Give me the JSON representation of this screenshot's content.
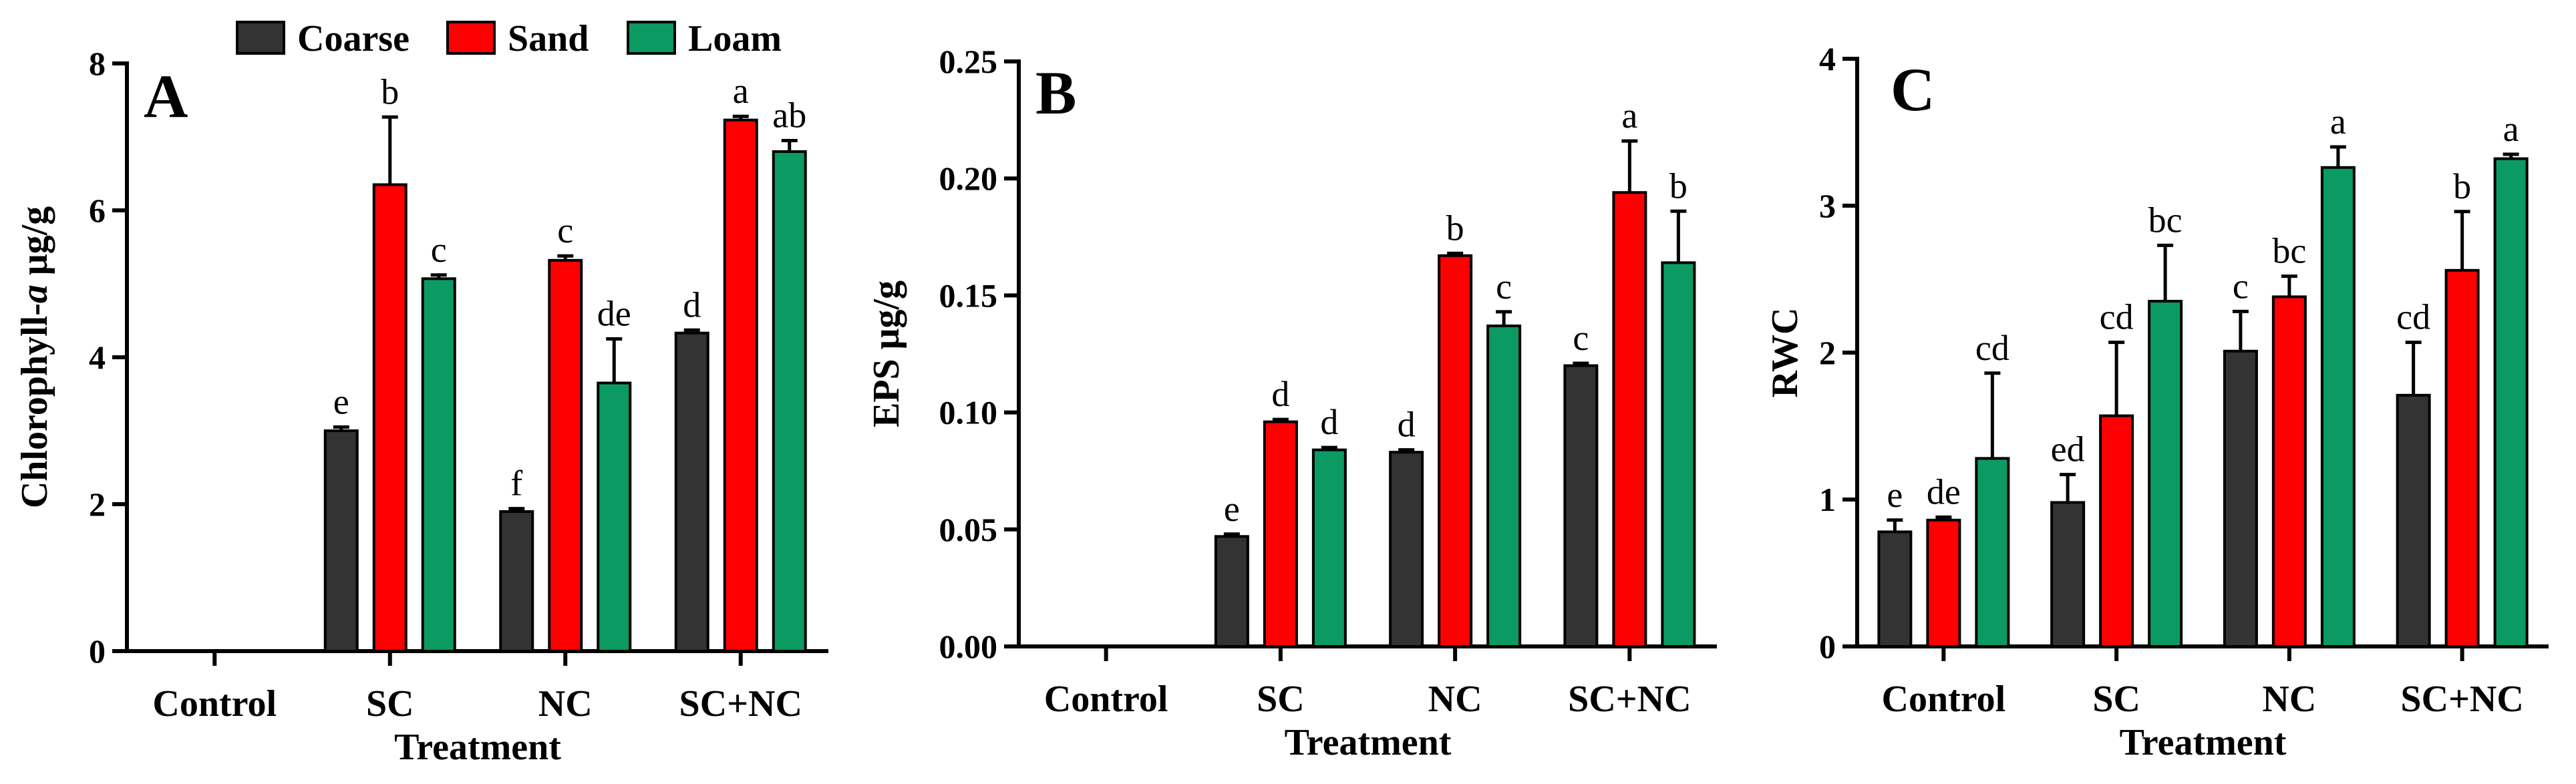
{
  "legend": [
    {
      "name": "Coarse",
      "color": "#333333"
    },
    {
      "name": "Sand",
      "color": "#ff0000"
    },
    {
      "name": "Loam",
      "color": "#0b9a62"
    }
  ],
  "chart_data": [
    {
      "type": "bar",
      "panel_label": "A",
      "title": "",
      "xlabel": "Treatment",
      "ylabel": "Chlorophyll-a μg/g",
      "ylabel_parts": [
        "Chlorophyll-",
        "a",
        " μg/g"
      ],
      "ylim": [
        0,
        8
      ],
      "yticks": [
        "0",
        "2",
        "4",
        "6",
        "8"
      ],
      "grid": false,
      "legend_position": "top",
      "categories": [
        "Control",
        "SC",
        "NC",
        "SC+NC"
      ],
      "series": [
        {
          "name": "Coarse",
          "color": "#333333",
          "values": [
            0,
            3.0,
            1.9,
            4.33
          ],
          "errors": [
            0,
            0.05,
            0.04,
            0.04
          ],
          "letters": [
            "",
            "e",
            "f",
            "d"
          ]
        },
        {
          "name": "Sand",
          "color": "#ff0000",
          "values": [
            0,
            6.35,
            5.32,
            7.23
          ],
          "errors": [
            0,
            0.92,
            0.06,
            0.05
          ],
          "letters": [
            "",
            "b",
            "c",
            "a"
          ]
        },
        {
          "name": "Loam",
          "color": "#0b9a62",
          "values": [
            0,
            5.07,
            3.65,
            6.8
          ],
          "errors": [
            0,
            0.05,
            0.6,
            0.15
          ],
          "letters": [
            "",
            "c",
            "de",
            "ab"
          ]
        }
      ]
    },
    {
      "type": "bar",
      "panel_label": "B",
      "title": "",
      "xlabel": "Treatment",
      "ylabel": "EPS μg/g",
      "ylabel_parts": [
        "EPS μg/g",
        "",
        ""
      ],
      "ylim": [
        0,
        0.25
      ],
      "yticks": [
        "0.00",
        "0.05",
        "0.10",
        "0.15",
        "0.20",
        "0.25"
      ],
      "grid": false,
      "legend_position": "none",
      "categories": [
        "Control",
        "SC",
        "NC",
        "SC+NC"
      ],
      "series": [
        {
          "name": "Coarse",
          "color": "#333333",
          "values": [
            0,
            0.047,
            0.083,
            0.12
          ],
          "errors": [
            0,
            0.001,
            0.001,
            0.001
          ],
          "letters": [
            "",
            "e",
            "d",
            "c"
          ]
        },
        {
          "name": "Sand",
          "color": "#ff0000",
          "values": [
            0,
            0.096,
            0.167,
            0.194
          ],
          "errors": [
            0,
            0.001,
            0.001,
            0.022
          ],
          "letters": [
            "",
            "d",
            "b",
            "a"
          ]
        },
        {
          "name": "Loam",
          "color": "#0b9a62",
          "values": [
            0,
            0.084,
            0.137,
            0.164
          ],
          "errors": [
            0,
            0.001,
            0.006,
            0.022
          ],
          "letters": [
            "",
            "d",
            "c",
            "b"
          ]
        }
      ]
    },
    {
      "type": "bar",
      "panel_label": "C",
      "title": "",
      "xlabel": "Treatment",
      "ylabel": "RWC",
      "ylabel_parts": [
        "RWC",
        "",
        ""
      ],
      "ylim": [
        0,
        4
      ],
      "yticks": [
        "0",
        "1",
        "2",
        "3",
        "4"
      ],
      "grid": false,
      "legend_position": "none",
      "categories": [
        "Control",
        "SC",
        "NC",
        "SC+NC"
      ],
      "series": [
        {
          "name": "Coarse",
          "color": "#333333",
          "values": [
            0.78,
            0.98,
            2.01,
            1.71
          ],
          "errors": [
            0.08,
            0.19,
            0.27,
            0.36
          ],
          "letters": [
            "e",
            "ed",
            "c",
            "cd"
          ]
        },
        {
          "name": "Sand",
          "color": "#ff0000",
          "values": [
            0.86,
            1.57,
            2.38,
            2.56
          ],
          "errors": [
            0.02,
            0.5,
            0.14,
            0.4
          ],
          "letters": [
            "de",
            "cd",
            "bc",
            "b"
          ]
        },
        {
          "name": "Loam",
          "color": "#0b9a62",
          "values": [
            1.28,
            2.35,
            3.26,
            3.32
          ],
          "errors": [
            0.58,
            0.38,
            0.14,
            0.03
          ],
          "letters": [
            "cd",
            "bc",
            "a",
            "a"
          ]
        }
      ]
    }
  ]
}
